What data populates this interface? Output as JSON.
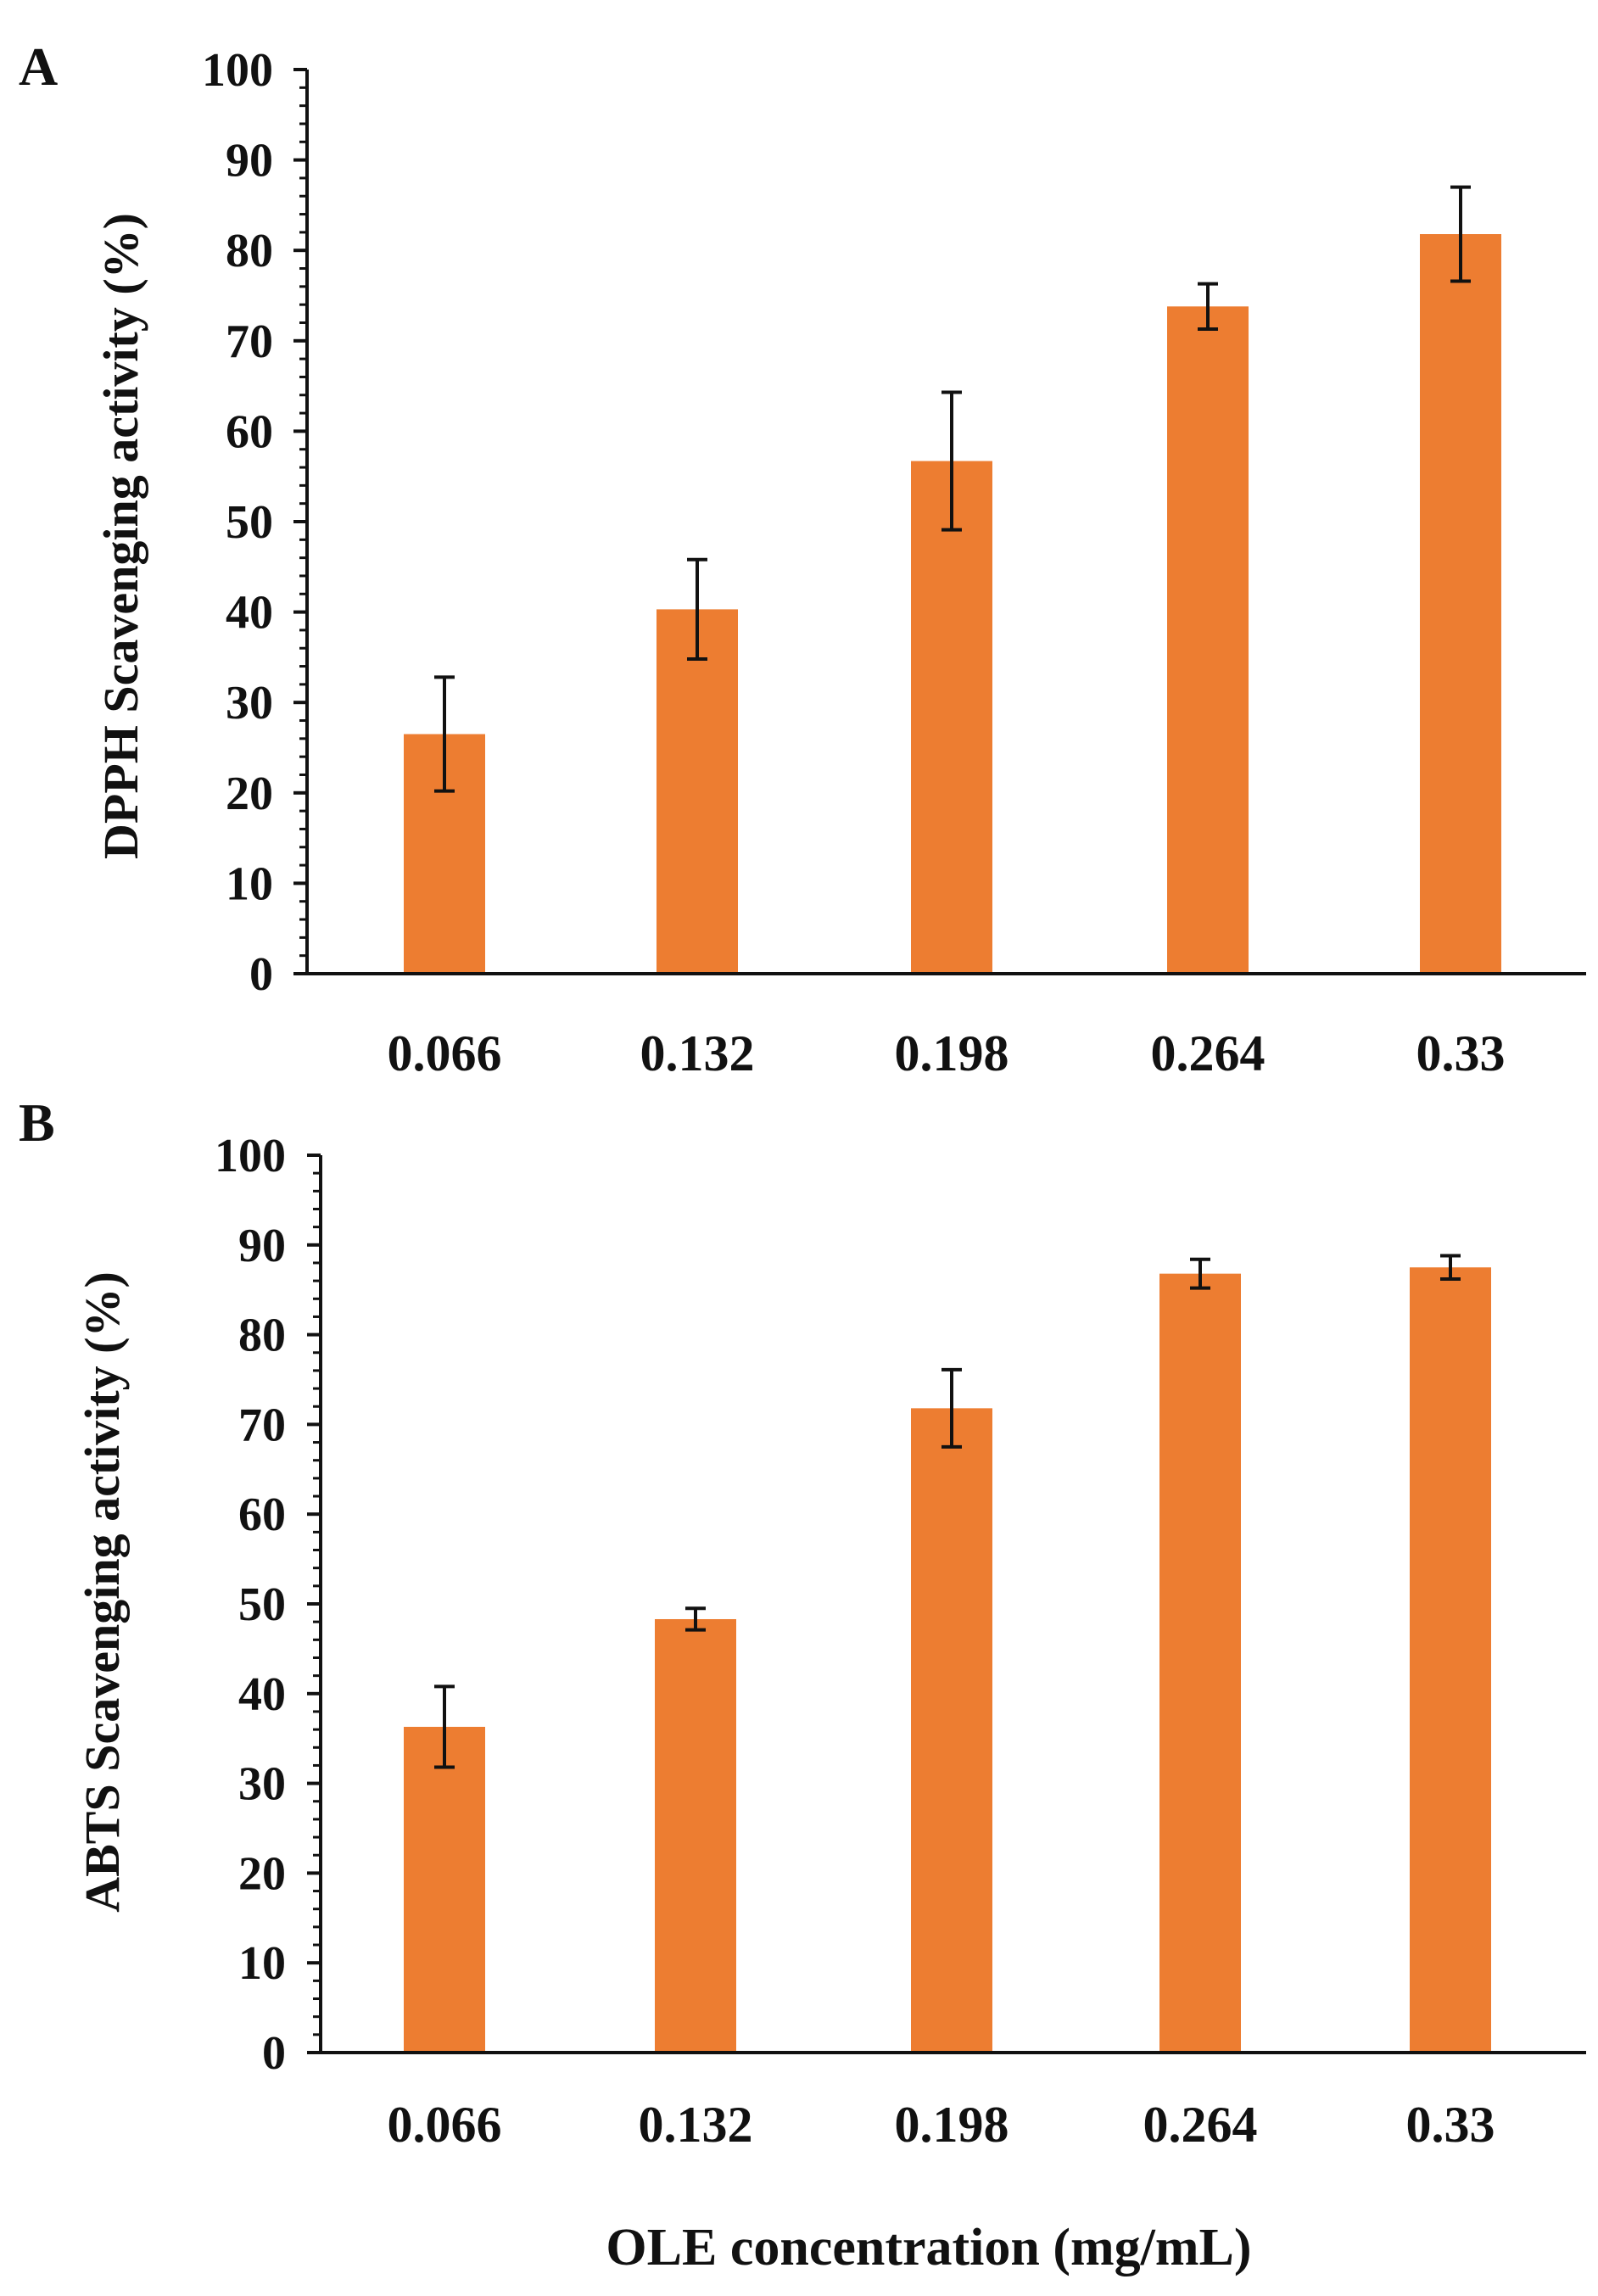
{
  "colors": {
    "bar": "#ED7D31",
    "axis": "#111111",
    "error_bar": "#111111"
  },
  "x_axis_title": "OLE concentration (mg/mL)",
  "chart_data": [
    {
      "type": "bar",
      "panel": "A",
      "categories": [
        "0.066",
        "0.132",
        "0.198",
        "0.264",
        "0.33"
      ],
      "values": [
        26.5,
        40.3,
        56.7,
        73.8,
        81.8
      ],
      "errors": [
        6.3,
        5.5,
        7.6,
        2.5,
        5.2
      ],
      "ylabel": "DPPH Scavenging activity (%)",
      "xlabel": "",
      "ylim": [
        0,
        100
      ],
      "yticks": [
        "0",
        "10",
        "20",
        "30",
        "40",
        "50",
        "60",
        "70",
        "80",
        "90",
        "100"
      ],
      "grid": false
    },
    {
      "type": "bar",
      "panel": "B",
      "categories": [
        "0.066",
        "0.132",
        "0.198",
        "0.264",
        "0.33"
      ],
      "values": [
        36.3,
        48.3,
        71.8,
        86.8,
        87.5
      ],
      "errors": [
        4.5,
        1.2,
        4.3,
        1.6,
        1.3
      ],
      "ylabel": "ABTS Scavenging activity (%)",
      "xlabel": "OLE concentration (mg/mL)",
      "ylim": [
        0,
        100
      ],
      "yticks": [
        "0",
        "10",
        "20",
        "30",
        "40",
        "50",
        "60",
        "70",
        "80",
        "90",
        "100"
      ],
      "grid": false
    }
  ]
}
